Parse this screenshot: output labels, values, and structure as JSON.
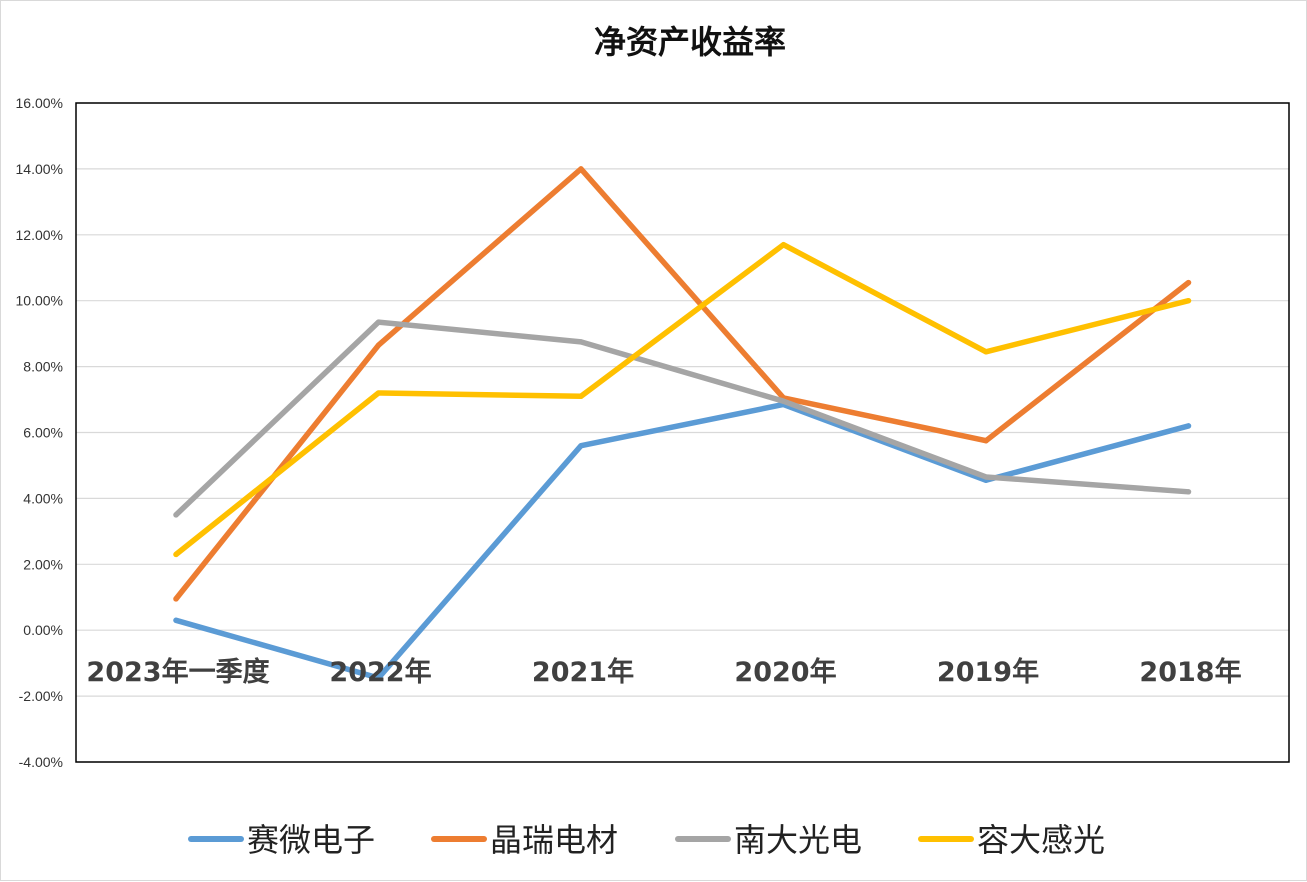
{
  "chart_data": {
    "type": "line",
    "title": "净资产收益率",
    "categories": [
      "2023年一季度",
      "2022年",
      "2021年",
      "2020年",
      "2019年",
      "2018年"
    ],
    "series": [
      {
        "name": "赛微电子",
        "color": "#5B9BD5",
        "values": [
          0.3,
          -1.45,
          5.6,
          6.85,
          4.55,
          6.2
        ]
      },
      {
        "name": "晶瑞电材",
        "color": "#ED7D31",
        "values": [
          0.95,
          8.65,
          14.0,
          7.05,
          5.75,
          10.55
        ]
      },
      {
        "name": "南大光电",
        "color": "#A5A5A5",
        "values": [
          3.5,
          9.35,
          8.75,
          6.95,
          4.65,
          4.2
        ]
      },
      {
        "name": "容大感光",
        "color": "#FFC000",
        "values": [
          2.3,
          7.2,
          7.1,
          11.7,
          8.45,
          10.0
        ]
      }
    ],
    "ylim": [
      -4,
      16
    ],
    "y_ticks": [
      -4,
      -2,
      0,
      2,
      4,
      6,
      8,
      10,
      12,
      14,
      16
    ],
    "y_tick_labels": [
      "-4.00%",
      "-2.00%",
      "0.00%",
      "2.00%",
      "4.00%",
      "6.00%",
      "8.00%",
      "10.00%",
      "12.00%",
      "14.00%",
      "16.00%"
    ],
    "y_unit": "%",
    "grid": true,
    "legend_position": "bottom"
  }
}
